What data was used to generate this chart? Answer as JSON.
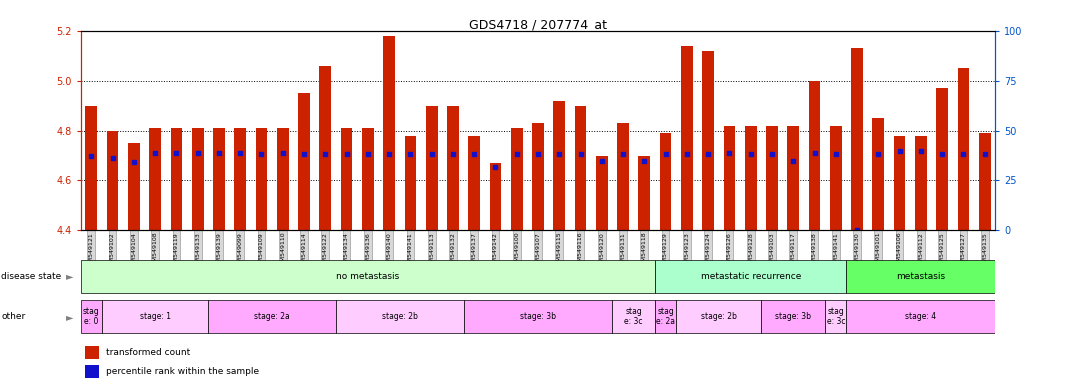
{
  "title": "GDS4718 / 207774_at",
  "samples": [
    "GSM549121",
    "GSM549102",
    "GSM549104",
    "GSM549108",
    "GSM549119",
    "GSM549133",
    "GSM549139",
    "GSM549099",
    "GSM549109",
    "GSM549110",
    "GSM549114",
    "GSM549122",
    "GSM549134",
    "GSM549136",
    "GSM549140",
    "GSM549141",
    "GSM549113",
    "GSM549132",
    "GSM549137",
    "GSM549142",
    "GSM549100",
    "GSM549107",
    "GSM549115",
    "GSM549116",
    "GSM549120",
    "GSM549131",
    "GSM549118",
    "GSM549129",
    "GSM549123",
    "GSM549124",
    "GSM549126",
    "GSM549128",
    "GSM549103",
    "GSM549117",
    "GSM549138",
    "GSM549141",
    "GSM549130",
    "GSM549101",
    "GSM549106",
    "GSM549112",
    "GSM549125",
    "GSM549127",
    "GSM549135"
  ],
  "bar_values": [
    4.9,
    4.8,
    4.75,
    4.81,
    4.81,
    4.81,
    4.81,
    4.81,
    4.81,
    4.81,
    4.95,
    5.06,
    4.81,
    4.81,
    5.18,
    4.78,
    4.9,
    4.9,
    4.78,
    4.67,
    4.81,
    4.83,
    4.92,
    4.9,
    4.7,
    4.83,
    4.7,
    4.79,
    5.14,
    5.12,
    4.82,
    4.82,
    4.82,
    4.82,
    5.0,
    4.82,
    5.13,
    4.85,
    4.78,
    4.78,
    4.97,
    5.05,
    4.79
  ],
  "blue_dot_y": [
    4.7,
    4.69,
    4.675,
    4.71,
    4.71,
    4.71,
    4.71,
    4.71,
    4.705,
    4.71,
    4.705,
    4.705,
    4.705,
    4.705,
    4.705,
    4.705,
    4.705,
    4.705,
    4.705,
    4.655,
    4.705,
    4.705,
    4.705,
    4.705,
    4.68,
    4.705,
    4.68,
    4.705,
    4.705,
    4.705,
    4.71,
    4.705,
    4.705,
    4.68,
    4.71,
    4.705,
    4.4,
    4.705,
    4.72,
    4.72,
    4.705,
    4.705,
    4.705
  ],
  "ylim": [
    4.4,
    5.2
  ],
  "yticks_left": [
    4.4,
    4.6,
    4.8,
    5.0,
    5.2
  ],
  "yticks_right_labels": [
    "0",
    "25",
    "50",
    "75",
    "100"
  ],
  "yticks_right_pos": [
    4.4,
    4.6,
    4.8,
    5.0,
    5.2
  ],
  "bar_color": "#cc2200",
  "dot_color": "#1111cc",
  "left_axis_color": "#cc2200",
  "right_axis_color": "#0055cc",
  "disease_state_groups": [
    {
      "text": "no metastasis",
      "start": 0,
      "end": 27,
      "color": "#ccffcc"
    },
    {
      "text": "metastatic recurrence",
      "start": 27,
      "end": 36,
      "color": "#aaffcc"
    },
    {
      "text": "metastasis",
      "start": 36,
      "end": 43,
      "color": "#66ff66"
    }
  ],
  "other_groups": [
    {
      "text": "stag\ne: 0",
      "start": 0,
      "end": 1,
      "color": "#ffaaff"
    },
    {
      "text": "stage: 1",
      "start": 1,
      "end": 6,
      "color": "#ffccff"
    },
    {
      "text": "stage: 2a",
      "start": 6,
      "end": 12,
      "color": "#ffaaff"
    },
    {
      "text": "stage: 2b",
      "start": 12,
      "end": 18,
      "color": "#ffccff"
    },
    {
      "text": "stage: 3b",
      "start": 18,
      "end": 25,
      "color": "#ffaaff"
    },
    {
      "text": "stag\ne: 3c",
      "start": 25,
      "end": 27,
      "color": "#ffccff"
    },
    {
      "text": "stag\ne: 2a",
      "start": 27,
      "end": 28,
      "color": "#ffaaff"
    },
    {
      "text": "stage: 2b",
      "start": 28,
      "end": 32,
      "color": "#ffccff"
    },
    {
      "text": "stage: 3b",
      "start": 32,
      "end": 35,
      "color": "#ffaaff"
    },
    {
      "text": "stag\ne: 3c",
      "start": 35,
      "end": 36,
      "color": "#ffccff"
    },
    {
      "text": "stage: 4",
      "start": 36,
      "end": 43,
      "color": "#ffaaff"
    }
  ],
  "legend_items": [
    {
      "label": "transformed count",
      "color": "#cc2200"
    },
    {
      "label": "percentile rank within the sample",
      "color": "#1111cc"
    }
  ]
}
